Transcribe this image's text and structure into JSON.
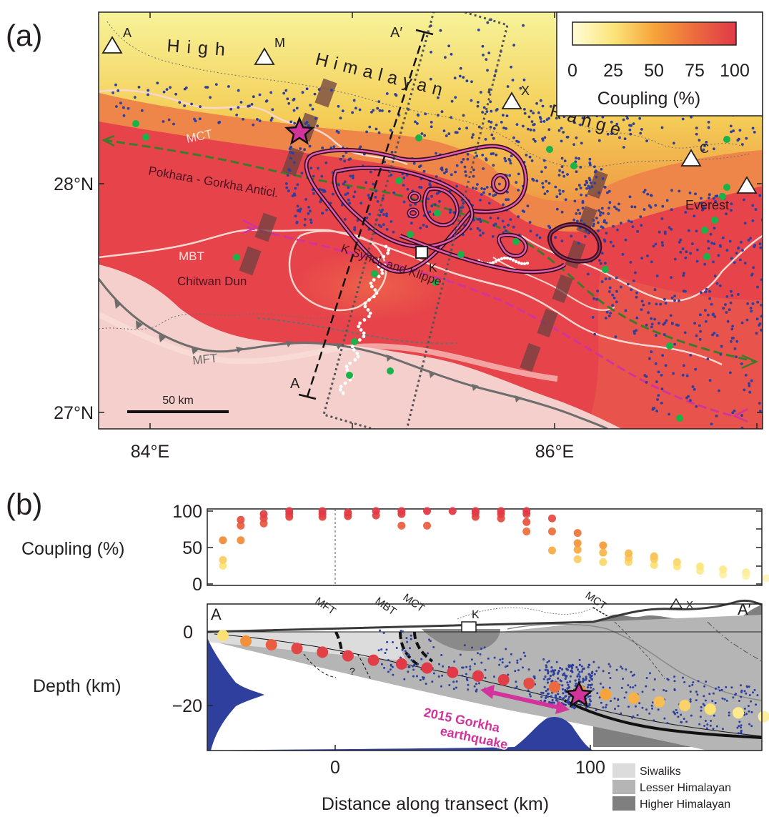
{
  "panel_a": {
    "panel_label": "(a)",
    "lat_labels": [
      "28°N",
      "27°N"
    ],
    "lon_labels": [
      "84°E",
      "86°E"
    ],
    "range_words": [
      "High",
      "Himalayan",
      "Range"
    ],
    "peaks": [
      "A",
      "M",
      "X",
      "C"
    ],
    "everest": "Everest",
    "feature_labels": {
      "mct": "MCT",
      "mbt": "MBT",
      "mft": "MFT",
      "pokhara": "Pokhara - Gorkha Anticl.",
      "ksyncl": "K Syncl. and Klippe",
      "chitwan": "Chitwan Dun",
      "kathmandu": "K"
    },
    "transect_ends": {
      "start": "A",
      "end": "A′"
    },
    "scale_bar": "50 km",
    "colorbar": {
      "ticks": [
        "0",
        "25",
        "50",
        "75",
        "100"
      ],
      "label": "Coupling (%)"
    }
  },
  "panel_b": {
    "panel_label": "(b)",
    "coupling_ylabel": "Coupling (%)",
    "coupling_yticks": [
      "100",
      "50",
      "0"
    ],
    "depth_ylabel": "Depth (km)",
    "depth_yticks": [
      "0",
      "−20"
    ],
    "xticks": [
      "0",
      "100"
    ],
    "xlabel": "Distance along transect (km)",
    "section_labels": {
      "start": "A",
      "end": "A′",
      "mft": "MFT",
      "mbt": "MBT",
      "mct_south": "MCT",
      "mct_north": "MCT",
      "kathmandu": "K",
      "peak": "X",
      "question": "?"
    },
    "eq_label_line1": "2015 Gorkha",
    "eq_label_line2": "earthquake",
    "legend": [
      "Siwaliks",
      "Lesser Himalayan",
      "Higher Himalayan"
    ]
  },
  "colors": {
    "scale_low": "#fffbd0",
    "scale_mid": "#f6a22a",
    "scale_high": "#e23a3e",
    "seismicity": "#2e3f9e",
    "gps": "#19b34a",
    "contour": "#d3399b",
    "siwaliks": "#dcdcdc",
    "lesser": "#b5b5b5",
    "higher": "#7f7f7f"
  },
  "chart_data": [
    {
      "type": "scatter",
      "description_series": "coupling profile",
      "xlabel": "",
      "ylabel": "Coupling (%)",
      "ylim": [
        0,
        100
      ],
      "xlim": [
        -50,
        168
      ],
      "points": [
        {
          "x": -44,
          "y": 25
        },
        {
          "x": -44,
          "y": 33
        },
        {
          "x": -44,
          "y": 60
        },
        {
          "x": -37,
          "y": 60
        },
        {
          "x": -37,
          "y": 80
        },
        {
          "x": -37,
          "y": 88
        },
        {
          "x": -28,
          "y": 83
        },
        {
          "x": -28,
          "y": 90
        },
        {
          "x": -28,
          "y": 96
        },
        {
          "x": -18,
          "y": 92
        },
        {
          "x": -18,
          "y": 96
        },
        {
          "x": -18,
          "y": 100
        },
        {
          "x": -5,
          "y": 92
        },
        {
          "x": -5,
          "y": 96
        },
        {
          "x": -5,
          "y": 100
        },
        {
          "x": 5,
          "y": 93
        },
        {
          "x": 5,
          "y": 96
        },
        {
          "x": 5,
          "y": 98
        },
        {
          "x": 16,
          "y": 94
        },
        {
          "x": 16,
          "y": 100
        },
        {
          "x": 26,
          "y": 80
        },
        {
          "x": 26,
          "y": 96
        },
        {
          "x": 26,
          "y": 100
        },
        {
          "x": 36,
          "y": 80
        },
        {
          "x": 36,
          "y": 100
        },
        {
          "x": 46,
          "y": 100
        },
        {
          "x": 55,
          "y": 92
        },
        {
          "x": 55,
          "y": 97
        },
        {
          "x": 55,
          "y": 100
        },
        {
          "x": 65,
          "y": 90
        },
        {
          "x": 65,
          "y": 96
        },
        {
          "x": 65,
          "y": 100
        },
        {
          "x": 75,
          "y": 72
        },
        {
          "x": 75,
          "y": 85
        },
        {
          "x": 75,
          "y": 96
        },
        {
          "x": 75,
          "y": 100
        },
        {
          "x": 85,
          "y": 46
        },
        {
          "x": 85,
          "y": 72
        },
        {
          "x": 85,
          "y": 90
        },
        {
          "x": 95,
          "y": 34
        },
        {
          "x": 95,
          "y": 47
        },
        {
          "x": 95,
          "y": 56
        },
        {
          "x": 95,
          "y": 70
        },
        {
          "x": 105,
          "y": 30
        },
        {
          "x": 105,
          "y": 43
        },
        {
          "x": 105,
          "y": 53
        },
        {
          "x": 115,
          "y": 30
        },
        {
          "x": 115,
          "y": 36
        },
        {
          "x": 115,
          "y": 42
        },
        {
          "x": 125,
          "y": 26
        },
        {
          "x": 125,
          "y": 34
        },
        {
          "x": 125,
          "y": 38
        },
        {
          "x": 134,
          "y": 24
        },
        {
          "x": 134,
          "y": 30
        },
        {
          "x": 143,
          "y": 18
        },
        {
          "x": 143,
          "y": 24
        },
        {
          "x": 152,
          "y": 13
        },
        {
          "x": 152,
          "y": 20
        },
        {
          "x": 161,
          "y": 11
        },
        {
          "x": 161,
          "y": 16
        },
        {
          "x": 169,
          "y": 8
        }
      ]
    },
    {
      "type": "line",
      "description_series": "decollement nodes",
      "xlabel": "Distance along transect (km)",
      "ylabel": "Depth (km)",
      "xlim": [
        -50,
        168
      ],
      "ylim": [
        -31,
        7
      ],
      "x": [
        -44,
        -35,
        -25,
        -15,
        -5,
        5,
        15,
        26,
        36,
        46,
        56,
        66,
        76,
        86,
        96,
        106,
        117,
        127,
        137,
        147,
        158,
        168
      ],
      "y": [
        -1,
        -2.5,
        -3.5,
        -4.5,
        -5.5,
        -6.5,
        -7.7,
        -8.7,
        -9.8,
        -11,
        -12,
        -13,
        -14,
        -15,
        -16,
        -17,
        -18,
        -19,
        -20,
        -21,
        -22,
        -23
      ],
      "coupling": [
        27,
        58,
        82,
        94,
        96,
        97,
        98,
        100,
        100,
        100,
        99,
        98,
        90,
        75,
        60,
        50,
        45,
        40,
        32,
        26,
        20,
        15
      ]
    }
  ]
}
